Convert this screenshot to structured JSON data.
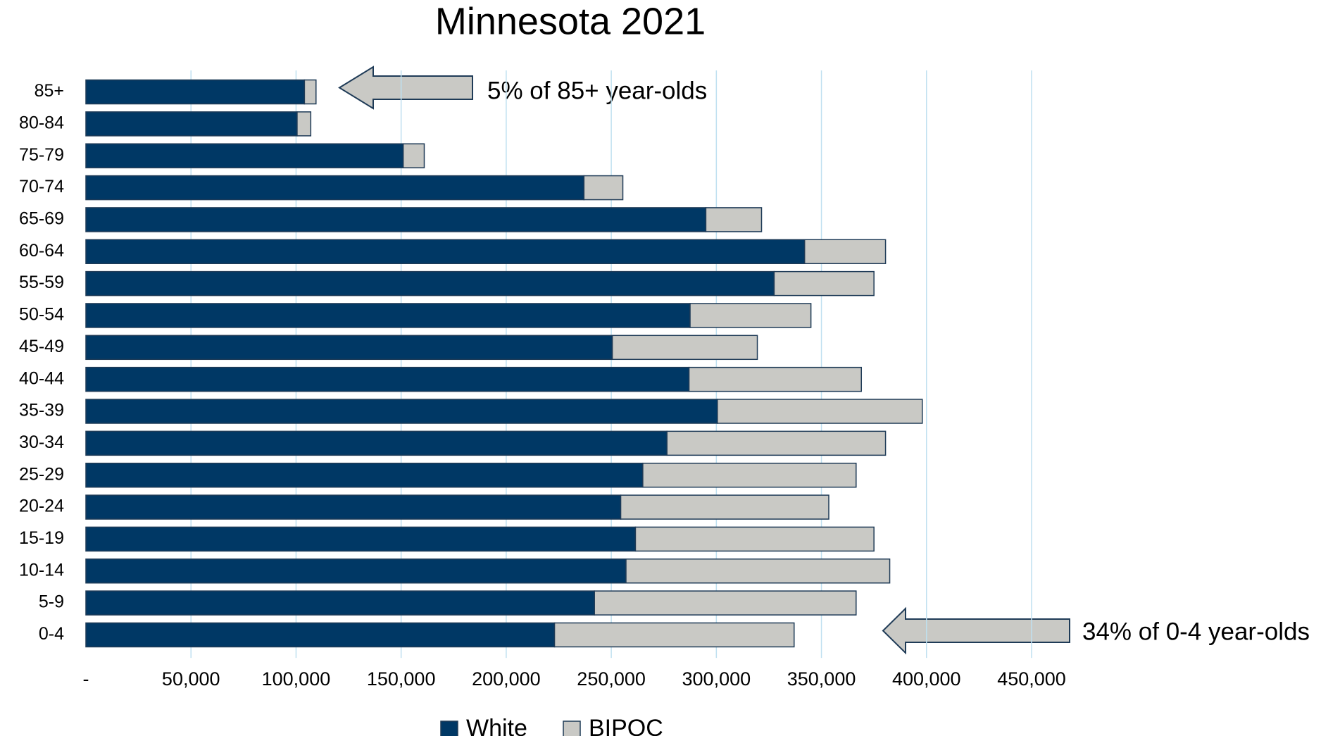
{
  "chart_data": {
    "type": "stacked_barh",
    "title": "Minnesota 2021",
    "categories": [
      "85+",
      "80-84",
      "75-79",
      "70-74",
      "65-69",
      "60-64",
      "55-59",
      "50-54",
      "45-49",
      "40-44",
      "35-39",
      "30-34",
      "25-29",
      "20-24",
      "15-19",
      "10-14",
      "5-9",
      "0-4"
    ],
    "series": [
      {
        "name": "White",
        "color": "#003865",
        "values": [
          104000,
          100500,
          151000,
          237000,
          295000,
          342000,
          327500,
          287500,
          250500,
          287000,
          300500,
          276500,
          265000,
          254500,
          261500,
          257000,
          242000,
          223000
        ]
      },
      {
        "name": "BIPOC",
        "color": "#c9c9c5",
        "values": [
          5500,
          6500,
          10000,
          18500,
          26500,
          38500,
          47500,
          57500,
          69000,
          82000,
          97500,
          104000,
          101500,
          99000,
          113500,
          125500,
          124500,
          114000
        ]
      }
    ],
    "xlim": [
      0,
      450000
    ],
    "xticks": [
      {
        "value": 0,
        "label": "-"
      },
      {
        "value": 50000,
        "label": "50,000"
      },
      {
        "value": 100000,
        "label": "100,000"
      },
      {
        "value": 150000,
        "label": "150,000"
      },
      {
        "value": 200000,
        "label": "200,000"
      },
      {
        "value": 250000,
        "label": "250,000"
      },
      {
        "value": 300000,
        "label": "300,000"
      },
      {
        "value": 350000,
        "label": "350,000"
      },
      {
        "value": 400000,
        "label": "400,000"
      },
      {
        "value": 450000,
        "label": "450,000"
      }
    ],
    "grid": true,
    "legend": "bottom",
    "annotations": [
      "5% of 85+ year-olds",
      "34% of 0-4 year-olds"
    ]
  }
}
